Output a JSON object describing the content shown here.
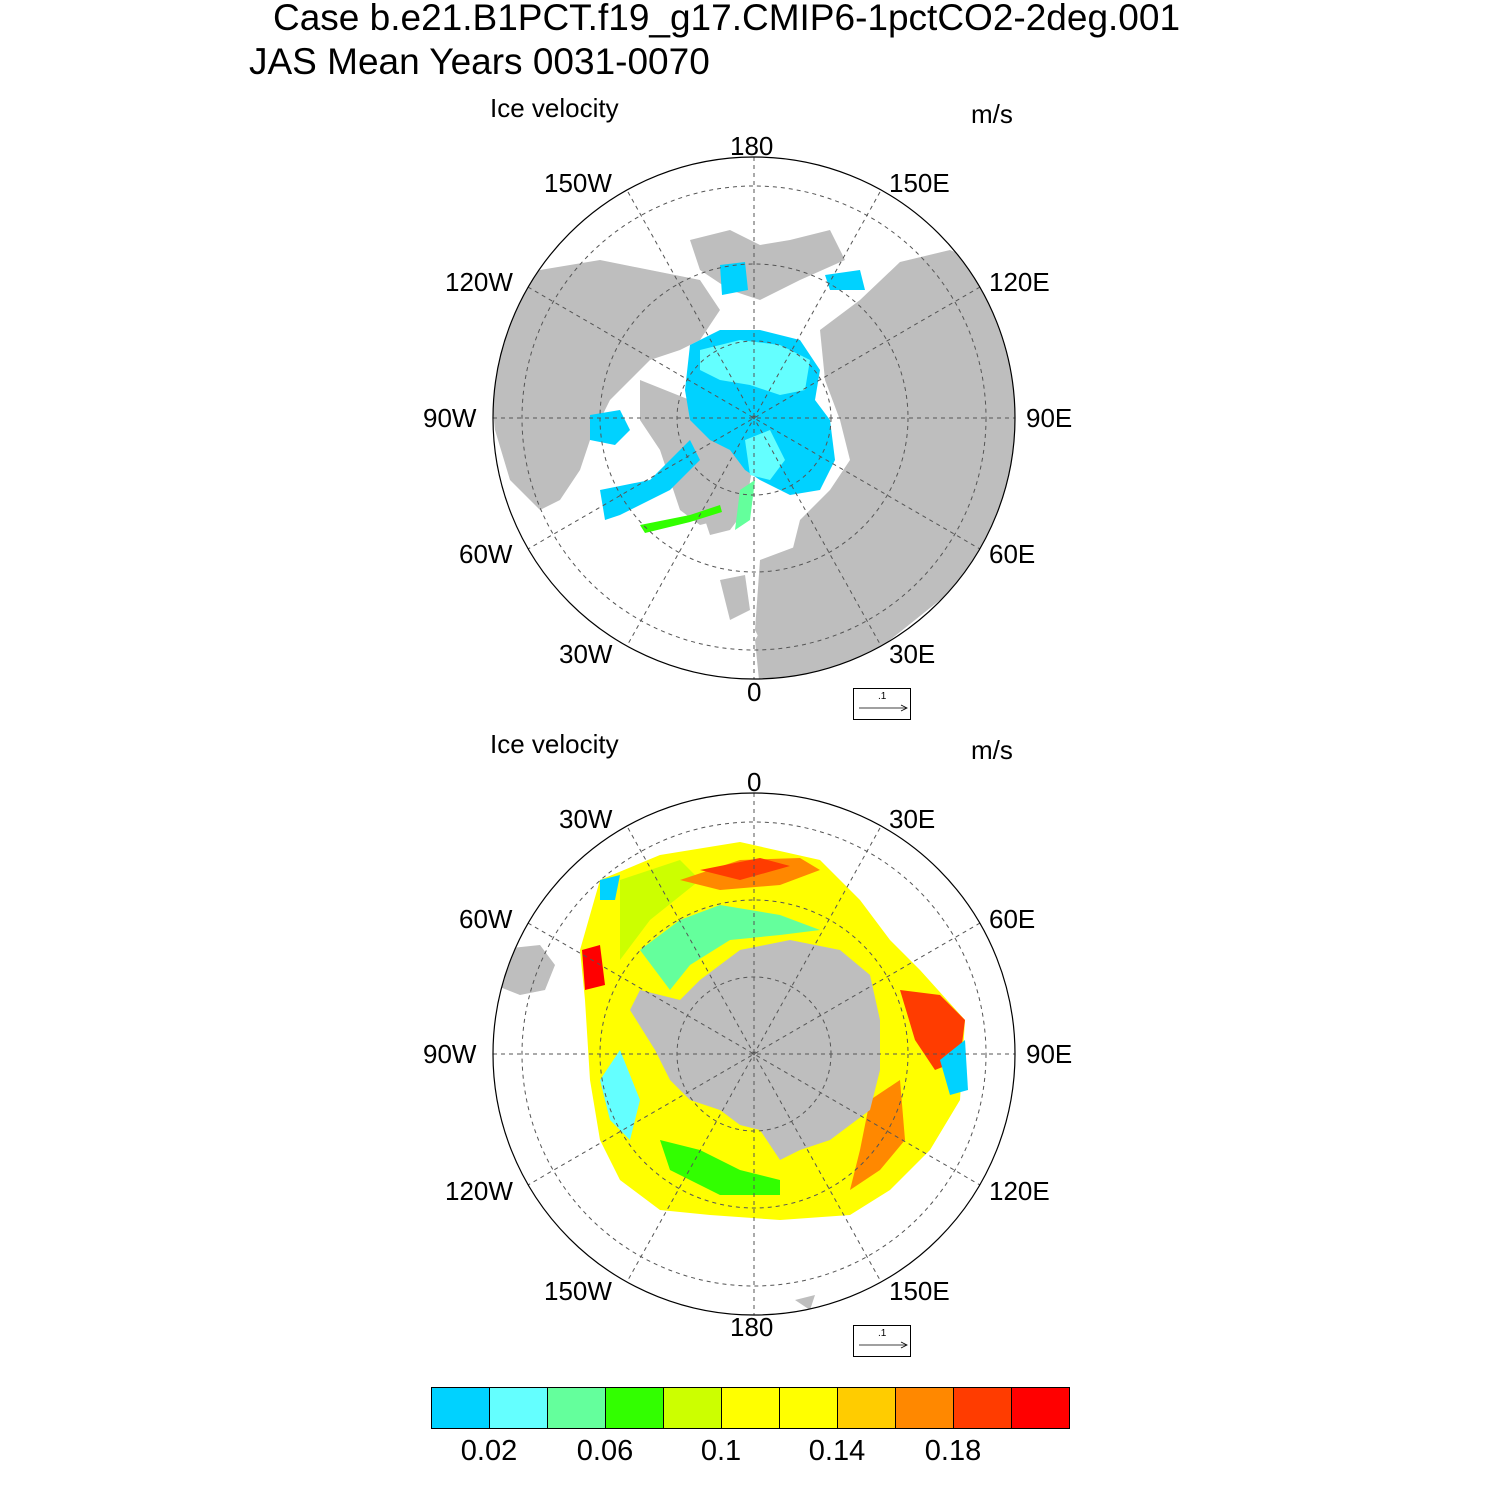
{
  "titles": {
    "case": "Case b.e21.B1PCT.f19_g17.CMIP6-1pctCO2-2deg.001",
    "period": "JAS Mean   Years 0031-0070"
  },
  "panels": [
    {
      "title": "Ice velocity",
      "units": "m/s",
      "hemisphere": "north",
      "lon_labels": {
        "top": "180",
        "bottom": "0",
        "left": "90W",
        "right": "90E",
        "upper_left_1": "150W",
        "upper_left_2": "120W",
        "upper_right_1": "150E",
        "upper_right_2": "120E",
        "lower_left_1": "60W",
        "lower_left_2": "30W",
        "lower_right_1": "60E",
        "lower_right_2": "30E"
      },
      "ref_vector": ".1"
    },
    {
      "title": "Ice velocity",
      "units": "m/s",
      "hemisphere": "south",
      "lon_labels": {
        "top": "0",
        "bottom": "180",
        "left": "90W",
        "right": "90E",
        "upper_left_1": "30W",
        "upper_left_2": "60W",
        "upper_right_1": "30E",
        "upper_right_2": "60E",
        "lower_left_1": "120W",
        "lower_left_2": "150W",
        "lower_right_1": "120E",
        "lower_right_2": "150E"
      },
      "ref_vector": ".1"
    }
  ],
  "colorbar": {
    "colors": [
      "#00d2ff",
      "#64ffff",
      "#64ff9c",
      "#32ff00",
      "#ccff00",
      "#ffff00",
      "#ffff00",
      "#ffcc00",
      "#ff8800",
      "#ff3c00",
      "#ff0000"
    ],
    "labels": [
      "0.02",
      "0.06",
      "0.1",
      "0.14",
      "0.18"
    ]
  },
  "colors": {
    "land": "#bebebe",
    "ocean": "#ffffff",
    "grid": "#555555"
  }
}
